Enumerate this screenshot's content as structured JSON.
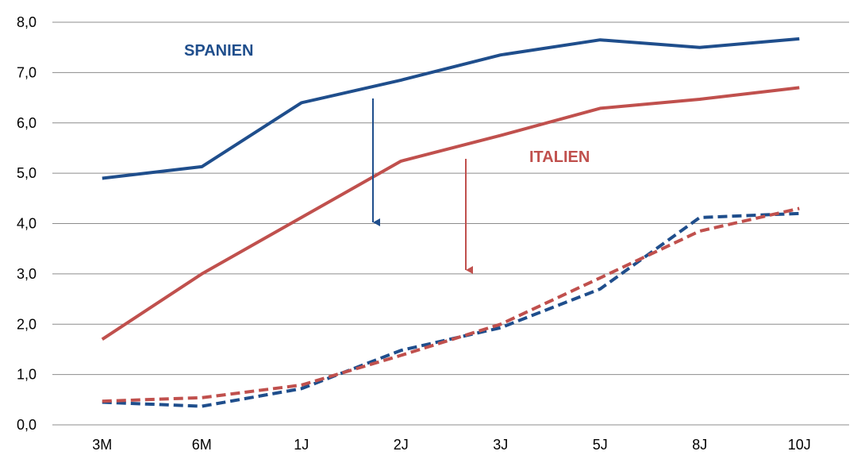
{
  "chart_data": {
    "type": "line",
    "categories": [
      "3M",
      "6M",
      "1J",
      "2J",
      "3J",
      "5J",
      "8J",
      "10J"
    ],
    "ylim": [
      0,
      8
    ],
    "yticks": [
      "0,0",
      "1,0",
      "2,0",
      "3,0",
      "4,0",
      "5,0",
      "6,0",
      "7,0",
      "8,0"
    ],
    "grid": true,
    "series": [
      {
        "name": "SPANIEN",
        "color": "#1f4e8c",
        "style": "solid",
        "values": [
          4.9,
          5.13,
          6.4,
          6.85,
          7.35,
          7.65,
          7.5,
          7.67
        ]
      },
      {
        "name": "ITALIEN",
        "color": "#c0504d",
        "style": "solid",
        "values": [
          1.7,
          3.0,
          4.12,
          5.24,
          5.75,
          6.29,
          6.47,
          6.7
        ]
      },
      {
        "color": "#1f4e8c",
        "style": "dashed",
        "values": [
          0.45,
          0.37,
          0.72,
          1.48,
          1.93,
          2.7,
          4.12,
          4.2
        ]
      },
      {
        "color": "#c0504d",
        "style": "dashed",
        "values": [
          0.47,
          0.54,
          0.79,
          1.38,
          2.0,
          2.92,
          3.85,
          4.3
        ]
      }
    ],
    "annotations": [
      {
        "text": "SPANIEN",
        "color": "#1f4e8c"
      },
      {
        "text": "ITALIEN",
        "color": "#c0504d"
      }
    ]
  }
}
